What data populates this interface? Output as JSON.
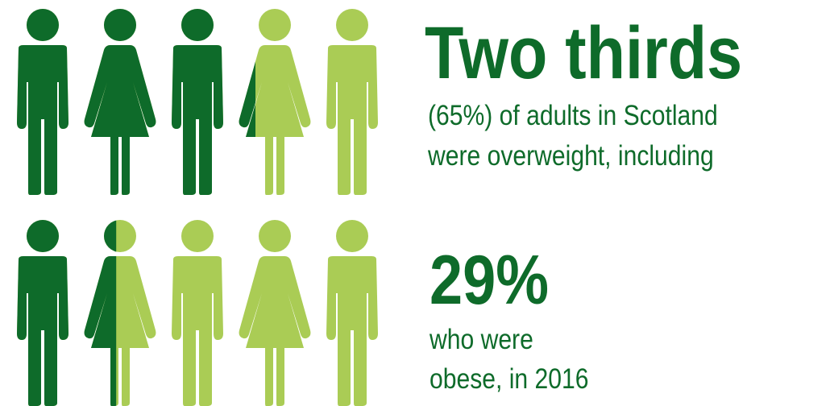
{
  "colors": {
    "dark_green": "#0e6b2a",
    "light_green": "#aacc55"
  },
  "stat_overweight": {
    "headline": "Two thirds",
    "line_1": "(65%) of adults in Scotland",
    "line_2": "were overweight, including",
    "icons": [
      "man-icon",
      "woman-icon",
      "man-icon",
      "woman-icon",
      "man-icon"
    ],
    "filled_fraction": 0.65
  },
  "stat_obese": {
    "headline": "29%",
    "line_1": "who were",
    "line_2": "obese, in 2016",
    "icons": [
      "man-icon",
      "woman-icon",
      "man-icon",
      "woman-icon",
      "man-icon"
    ],
    "filled_fraction": 0.29
  }
}
